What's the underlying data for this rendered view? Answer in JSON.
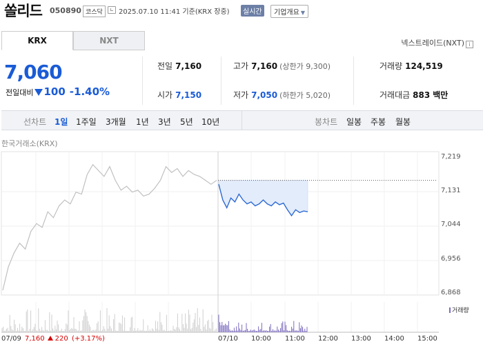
{
  "header": {
    "name": "쏠리드",
    "code": "050890",
    "market": "코스닥",
    "datetime": "2025.07.10 11:41 기준(KRX 장중)",
    "realtime": "실시간",
    "company_info": "기업개요"
  },
  "tabs": [
    "KRX",
    "NXT"
  ],
  "nextrade": "넥스트레이드(NXT)",
  "quote": {
    "price": "7,060",
    "change_label": "전일대비",
    "change_amount": "100",
    "change_pct": "-1.40%"
  },
  "stats": {
    "prev_close": {
      "label": "전일",
      "value": "7,160"
    },
    "open": {
      "label": "시가",
      "value": "7,150"
    },
    "high": {
      "label": "고가",
      "value": "7,160",
      "sub": "(상한가 9,300)"
    },
    "low": {
      "label": "저가",
      "value": "7,050",
      "sub": "(하한가 5,020)"
    },
    "volume": {
      "label": "거래량",
      "value": "124,519"
    },
    "amount": {
      "label": "거래대금",
      "value": "883",
      "unit": "백만"
    }
  },
  "periods": {
    "line_label": "선차트",
    "line_items": [
      "1일",
      "1주일",
      "3개월",
      "1년",
      "3년",
      "5년",
      "10년"
    ],
    "candle_label": "봉차트",
    "candle_items": [
      "일봉",
      "주봉",
      "월봉"
    ]
  },
  "chart_data": {
    "type": "line",
    "source": "한국거래소(KRX)",
    "y_ticks": [
      "7,219",
      "7,131",
      "7,044",
      "6,956",
      "6,868"
    ],
    "ylim": [
      6868,
      7219
    ],
    "x_ticks": [
      "07/10",
      "10:00",
      "11:00",
      "12:00",
      "13:00",
      "14:00",
      "15:00"
    ],
    "volume_label": "거래량",
    "prev_day": {
      "date": "07/09",
      "close": "7,160",
      "change": "220",
      "pct": "(+3.17%)"
    },
    "reference_price": 7160,
    "series": [
      {
        "values": [
          6880,
          6940,
          6975,
          7000,
          6985,
          7030,
          7050,
          7040,
          7080,
          7065,
          7095,
          7110,
          7100,
          7130,
          7125,
          7175,
          7200,
          7185,
          7170,
          7195,
          7160,
          7135,
          7145,
          7130,
          7135,
          7120,
          7125,
          7140,
          7160,
          7195,
          7180,
          7190,
          7170,
          7185,
          7175,
          7170,
          7160,
          7150,
          7160
        ]
      },
      {
        "values": [
          7150,
          7110,
          7090,
          7115,
          7105,
          7125,
          7110,
          7100,
          7105,
          7095,
          7100,
          7110,
          7100,
          7095,
          7105,
          7098,
          7102,
          7085,
          7070,
          7085,
          7078,
          7082,
          7080
        ]
      }
    ]
  },
  "colors": {
    "accent_blue": "#1a5bd6",
    "up_red": "#d60000",
    "today_line": "#2d6ad2",
    "today_fill": "#e3ecfb",
    "prev_line": "#c0c0c0",
    "volume_bar": "#7d6bbf"
  }
}
